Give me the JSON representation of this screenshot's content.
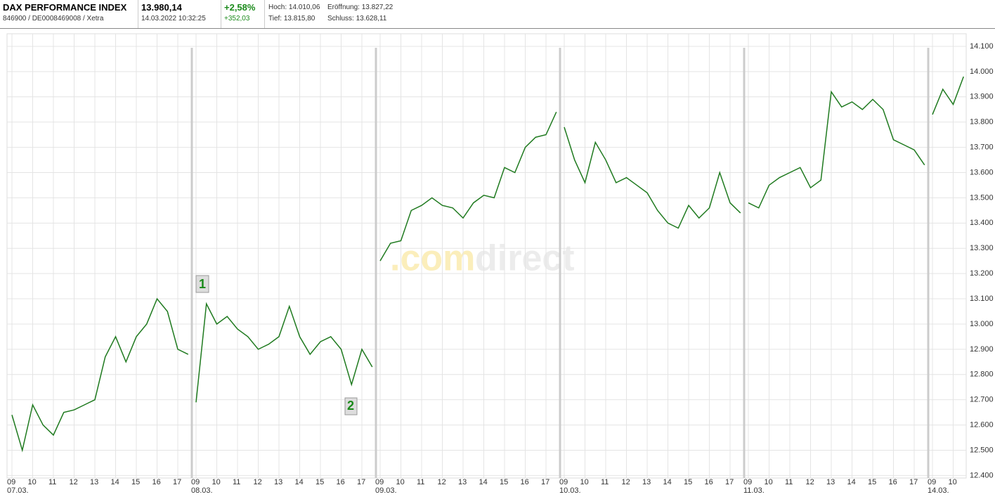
{
  "header": {
    "name": "DAX PERFORMANCE INDEX",
    "ids": "846900 / DE0008469008 / Xetra",
    "price": "13.980,14",
    "timestamp": "14.03.2022 10:32:25",
    "change_pct": "+2,58%",
    "change_abs": "+352,03",
    "high": "Hoch: 14.010,06",
    "open": "Eröffnung: 13.827,22",
    "low": "Tief: 13.815,80",
    "close": "Schluss: 13.628,11"
  },
  "chart_data": {
    "type": "line",
    "color": "#1f7a1f",
    "grid": true,
    "watermark": {
      "part1": ".com",
      "part2": "direct"
    },
    "annotations": [
      "1",
      "2"
    ],
    "ylim": [
      12390,
      14150
    ],
    "yticks": [
      {
        "value": 12400,
        "label": "12.400"
      },
      {
        "value": 12500,
        "label": "12.500"
      },
      {
        "value": 12600,
        "label": "12.600"
      },
      {
        "value": 12700,
        "label": "12.700"
      },
      {
        "value": 12800,
        "label": "12.800"
      },
      {
        "value": 12900,
        "label": "12.900"
      },
      {
        "value": 13000,
        "label": "13.000"
      },
      {
        "value": 13100,
        "label": "13.100"
      },
      {
        "value": 13200,
        "label": "13.200"
      },
      {
        "value": 13300,
        "label": "13.300"
      },
      {
        "value": 13400,
        "label": "13.400"
      },
      {
        "value": 13500,
        "label": "13.500"
      },
      {
        "value": 13600,
        "label": "13.600"
      },
      {
        "value": 13700,
        "label": "13.700"
      },
      {
        "value": 13800,
        "label": "13.800"
      },
      {
        "value": 13900,
        "label": "13.900"
      },
      {
        "value": 14000,
        "label": "14.000"
      },
      {
        "value": 14100,
        "label": "14.100"
      }
    ],
    "days": [
      {
        "date": "07.03.",
        "hours": [
          "09",
          "10",
          "11",
          "12",
          "13",
          "14",
          "15",
          "16",
          "17"
        ],
        "values": [
          12640,
          12500,
          12680,
          12600,
          12560,
          12650,
          12660,
          12680,
          12700,
          12870,
          12950,
          12850,
          12950,
          13000,
          13100,
          13050,
          12900,
          12880
        ]
      },
      {
        "date": "08.03.",
        "hours": [
          "09",
          "10",
          "11",
          "12",
          "13",
          "14",
          "15",
          "16",
          "17"
        ],
        "values": [
          12690,
          13080,
          13000,
          13030,
          12980,
          12950,
          12900,
          12920,
          12950,
          13070,
          12950,
          12880,
          12930,
          12950,
          12900,
          12760,
          12900,
          12830
        ]
      },
      {
        "date": "09.03.",
        "hours": [
          "09",
          "10",
          "11",
          "12",
          "13",
          "14",
          "15",
          "16",
          "17"
        ],
        "values": [
          13250,
          13320,
          13330,
          13450,
          13470,
          13500,
          13470,
          13460,
          13420,
          13480,
          13510,
          13500,
          13620,
          13600,
          13700,
          13740,
          13750,
          13840
        ]
      },
      {
        "date": "10.03.",
        "hours": [
          "09",
          "10",
          "11",
          "12",
          "13",
          "14",
          "15",
          "16",
          "17"
        ],
        "values": [
          13780,
          13650,
          13560,
          13720,
          13650,
          13560,
          13580,
          13550,
          13520,
          13450,
          13400,
          13380,
          13470,
          13420,
          13460,
          13600,
          13480,
          13440
        ]
      },
      {
        "date": "11.03.",
        "hours": [
          "09",
          "10",
          "11",
          "12",
          "13",
          "14",
          "15",
          "16",
          "17"
        ],
        "values": [
          13480,
          13460,
          13550,
          13580,
          13600,
          13620,
          13540,
          13570,
          13920,
          13860,
          13880,
          13850,
          13890,
          13850,
          13730,
          13710,
          13690,
          13630
        ]
      },
      {
        "date": "14.03.",
        "hours": [
          "09",
          "10"
        ],
        "values": [
          13830,
          13930,
          13870,
          13980
        ]
      }
    ]
  }
}
